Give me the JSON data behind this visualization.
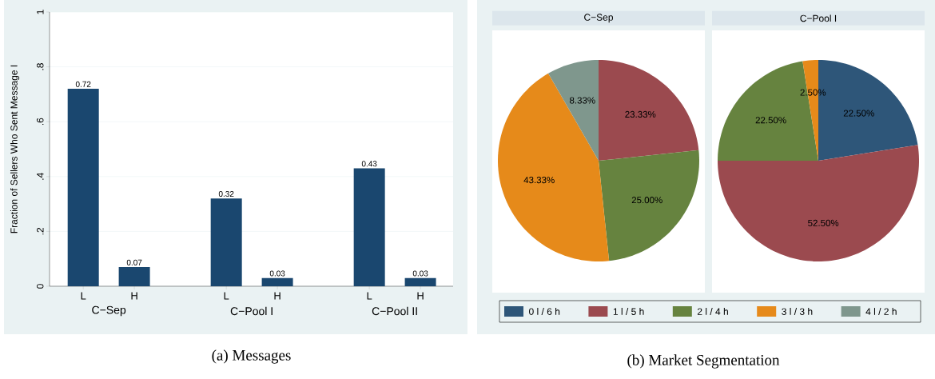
{
  "chart_data": [
    {
      "type": "bar",
      "title": "(a) Messages",
      "ylabel": "Fraction of Sellers Who Sent Message I",
      "categories": [
        "L",
        "H",
        "L",
        "H",
        "L",
        "H"
      ],
      "values": [
        0.72,
        0.07,
        0.32,
        0.03,
        0.43,
        0.03
      ],
      "color": "#1a476f",
      "ylim": [
        0,
        1
      ],
      "yticks": [
        0,
        {
          "value": 0.2,
          "label": ".2"
        },
        {
          "value": 0.4,
          "label": ".4"
        },
        {
          "value": 0.6,
          "label": ".6"
        },
        {
          "value": 0.8,
          "label": ".8"
        },
        1
      ],
      "grid": "y",
      "data_labels": true,
      "annotations": [
        "C−Sep",
        "C−Pool I",
        "C−Pool II"
      ]
    },
    {
      "type": "pie",
      "title": "(b) Market Segmentation",
      "categories": [
        "0 l / 6 h",
        "1 l / 5 h",
        "2 l / 4 h",
        "3 l / 3 h",
        "4 l / 2 h"
      ],
      "colors": [
        "#2e5679",
        "#9b4a4f",
        "#66833f",
        "#e68a1a",
        "#7f978d"
      ],
      "legend": "bottom",
      "series": [
        {
          "name": "C−Sep",
          "values": [
            0,
            23.33,
            25.0,
            43.33,
            8.33
          ],
          "value_labels": [
            null,
            "23.33%",
            "25.00%",
            "43.33%",
            "8.33%"
          ]
        },
        {
          "name": "C−Pool I",
          "values": [
            22.5,
            52.5,
            22.5,
            2.5,
            0
          ],
          "value_labels": [
            "22.50%",
            "52.50%",
            "22.50%",
            "2.50%",
            null
          ]
        }
      ]
    }
  ]
}
